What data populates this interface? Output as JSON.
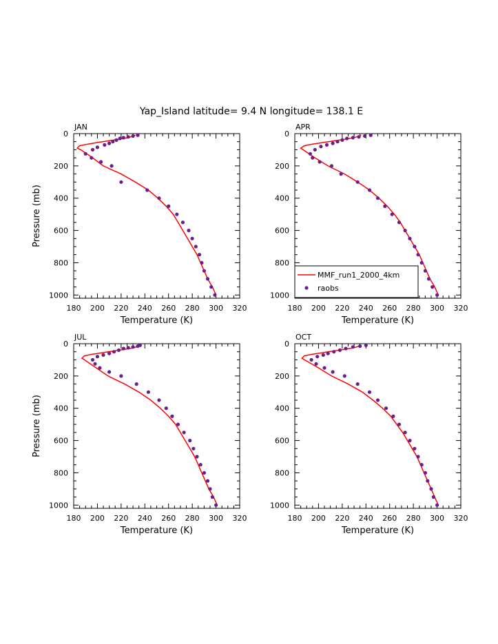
{
  "title": "Yap_Island  latitude= 9.4 N longitude= 138.1 E",
  "legend": {
    "model_label": "MMF_run1_2000_4km",
    "obs_label": "raobs"
  },
  "colors": {
    "model": "#ff0000",
    "obs": "#6b1e8a"
  },
  "chart_data": [
    {
      "type": "line",
      "panel_label": "JAN",
      "xlabel": "Temperature (K)",
      "ylabel": "Pressure (mb)",
      "xlim": [
        180,
        320
      ],
      "ylim": [
        0,
        1020
      ],
      "y_inverted": true,
      "x_ticks": [
        180,
        200,
        220,
        240,
        260,
        280,
        300,
        320
      ],
      "y_ticks": [
        0,
        200,
        400,
        600,
        800,
        1000
      ],
      "series": [
        {
          "name": "MMF_run1_2000_4km",
          "type": "line",
          "x": [
            300,
            297,
            293,
            290,
            287,
            284,
            280,
            276,
            272,
            268,
            264,
            258,
            251,
            243,
            232,
            220,
            205,
            196,
            190,
            186,
            183,
            185,
            192,
            200,
            209,
            218,
            226,
            232
          ],
          "y": [
            1000,
            950,
            900,
            850,
            800,
            750,
            700,
            650,
            600,
            550,
            500,
            450,
            400,
            350,
            300,
            250,
            200,
            150,
            120,
            100,
            90,
            75,
            65,
            55,
            45,
            35,
            25,
            10
          ]
        },
        {
          "name": "raobs",
          "type": "scatter",
          "x": [
            299,
            296,
            293,
            290,
            288,
            286,
            283,
            280,
            277,
            272,
            267,
            260,
            252,
            242,
            220,
            212,
            203,
            195,
            190,
            196,
            200,
            206,
            210,
            213,
            216,
            219,
            222,
            226,
            230,
            234
          ],
          "y": [
            1000,
            950,
            900,
            850,
            800,
            750,
            700,
            650,
            600,
            550,
            500,
            450,
            400,
            350,
            300,
            200,
            175,
            150,
            125,
            100,
            85,
            70,
            60,
            50,
            40,
            30,
            25,
            20,
            15,
            10
          ]
        }
      ]
    },
    {
      "type": "line",
      "panel_label": "APR",
      "xlabel": "Temperature (K)",
      "ylabel": "",
      "xlim": [
        180,
        320
      ],
      "ylim": [
        0,
        1020
      ],
      "y_inverted": true,
      "x_ticks": [
        180,
        200,
        220,
        240,
        260,
        280,
        300,
        320
      ],
      "y_ticks": [
        0,
        200,
        400,
        600,
        800,
        1000
      ],
      "series": [
        {
          "name": "MMF_run1_2000_4km",
          "type": "line",
          "x": [
            301,
            298,
            294,
            291,
            288,
            285,
            281,
            277,
            273,
            269,
            264,
            258,
            251,
            243,
            233,
            222,
            208,
            197,
            191,
            187,
            185,
            188,
            195,
            204,
            213,
            222,
            230,
            236
          ],
          "y": [
            1000,
            950,
            900,
            850,
            800,
            750,
            700,
            650,
            600,
            550,
            500,
            450,
            400,
            350,
            300,
            250,
            200,
            150,
            120,
            100,
            90,
            75,
            65,
            55,
            45,
            35,
            25,
            10
          ]
        },
        {
          "name": "raobs",
          "type": "scatter",
          "x": [
            300,
            296,
            293,
            290,
            287,
            284,
            281,
            277,
            273,
            268,
            262,
            256,
            250,
            243,
            233,
            219,
            211,
            201,
            195,
            193,
            197,
            202,
            207,
            212,
            216,
            220,
            224,
            229,
            234,
            239,
            244
          ],
          "y": [
            1000,
            950,
            900,
            850,
            800,
            750,
            700,
            650,
            600,
            550,
            500,
            450,
            400,
            350,
            300,
            250,
            200,
            175,
            150,
            125,
            100,
            80,
            70,
            60,
            50,
            40,
            30,
            25,
            20,
            15,
            10
          ]
        }
      ]
    },
    {
      "type": "line",
      "panel_label": "JUL",
      "xlabel": "Temperature (K)",
      "ylabel": "Pressure (mb)",
      "xlim": [
        180,
        320
      ],
      "ylim": [
        0,
        1020
      ],
      "y_inverted": true,
      "x_ticks": [
        180,
        200,
        220,
        240,
        260,
        280,
        300,
        320
      ],
      "y_ticks": [
        0,
        200,
        400,
        600,
        800,
        1000
      ],
      "series": [
        {
          "name": "MMF_run1_2000_4km",
          "type": "line",
          "x": [
            301,
            298,
            294,
            291,
            288,
            285,
            282,
            278,
            274,
            270,
            266,
            260,
            253,
            245,
            235,
            223,
            209,
            199,
            193,
            189,
            187,
            189,
            196,
            205,
            214,
            223,
            231,
            236
          ],
          "y": [
            1000,
            950,
            900,
            850,
            800,
            750,
            700,
            650,
            600,
            550,
            500,
            450,
            400,
            350,
            300,
            250,
            200,
            150,
            120,
            100,
            90,
            75,
            65,
            55,
            45,
            35,
            25,
            10
          ]
        },
        {
          "name": "raobs",
          "type": "scatter",
          "x": [
            300,
            297,
            295,
            293,
            290,
            287,
            284,
            281,
            278,
            273,
            268,
            263,
            258,
            252,
            243,
            233,
            220,
            210,
            202,
            198,
            196,
            200,
            205,
            210,
            214,
            218,
            222,
            226,
            230,
            234,
            236
          ],
          "y": [
            1000,
            950,
            900,
            850,
            800,
            750,
            700,
            650,
            600,
            550,
            500,
            450,
            400,
            350,
            300,
            250,
            200,
            175,
            150,
            125,
            100,
            80,
            70,
            60,
            50,
            40,
            30,
            25,
            20,
            15,
            10
          ]
        }
      ]
    },
    {
      "type": "line",
      "panel_label": "OCT",
      "xlabel": "Temperature (K)",
      "ylabel": "",
      "xlim": [
        180,
        320
      ],
      "ylim": [
        0,
        1020
      ],
      "y_inverted": true,
      "x_ticks": [
        180,
        200,
        220,
        240,
        260,
        280,
        300,
        320
      ],
      "y_ticks": [
        0,
        200,
        400,
        600,
        800,
        1000
      ],
      "series": [
        {
          "name": "MMF_run1_2000_4km",
          "type": "line",
          "x": [
            301,
            298,
            295,
            292,
            289,
            286,
            283,
            279,
            275,
            271,
            266,
            261,
            254,
            246,
            237,
            225,
            211,
            200,
            193,
            188,
            186,
            188,
            195,
            204,
            213,
            222,
            230,
            236
          ],
          "y": [
            1000,
            950,
            900,
            850,
            800,
            750,
            700,
            650,
            600,
            550,
            500,
            450,
            400,
            350,
            300,
            250,
            200,
            150,
            120,
            100,
            90,
            75,
            65,
            55,
            45,
            35,
            25,
            10
          ]
        },
        {
          "name": "raobs",
          "type": "scatter",
          "x": [
            300,
            297,
            295,
            292,
            290,
            287,
            284,
            281,
            277,
            273,
            268,
            263,
            257,
            250,
            243,
            233,
            222,
            212,
            205,
            198,
            194,
            199,
            204,
            208,
            213,
            218,
            223,
            229,
            235,
            240
          ],
          "y": [
            1000,
            950,
            900,
            850,
            800,
            750,
            700,
            650,
            600,
            550,
            500,
            450,
            400,
            350,
            300,
            250,
            200,
            175,
            150,
            125,
            100,
            80,
            70,
            60,
            50,
            40,
            30,
            20,
            15,
            10
          ]
        }
      ]
    }
  ]
}
